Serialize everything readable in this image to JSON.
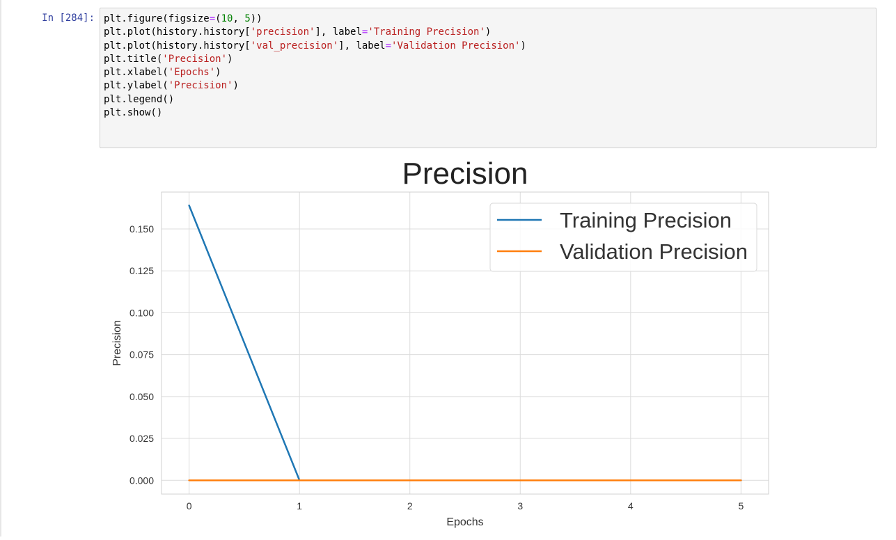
{
  "cell": {
    "prompt": "In [284]:",
    "code_lines": [
      [
        {
          "t": "plt.figure(figsize"
        },
        {
          "t": "=",
          "c": "op"
        },
        {
          "t": "("
        },
        {
          "t": "10",
          "c": "num"
        },
        {
          "t": ", "
        },
        {
          "t": "5",
          "c": "num"
        },
        {
          "t": "))"
        }
      ],
      [
        {
          "t": "plt.plot(history.history["
        },
        {
          "t": "'precision'",
          "c": "str"
        },
        {
          "t": "], label"
        },
        {
          "t": "=",
          "c": "op"
        },
        {
          "t": "'Training Precision'",
          "c": "str"
        },
        {
          "t": ")"
        }
      ],
      [
        {
          "t": "plt.plot(history.history["
        },
        {
          "t": "'val_precision'",
          "c": "str"
        },
        {
          "t": "], label"
        },
        {
          "t": "=",
          "c": "op"
        },
        {
          "t": "'Validation Precision'",
          "c": "str"
        },
        {
          "t": ")"
        }
      ],
      [
        {
          "t": "plt.title("
        },
        {
          "t": "'Precision'",
          "c": "str"
        },
        {
          "t": ")"
        }
      ],
      [
        {
          "t": "plt.xlabel("
        },
        {
          "t": "'Epochs'",
          "c": "str"
        },
        {
          "t": ")"
        }
      ],
      [
        {
          "t": "plt.ylabel("
        },
        {
          "t": "'Precision'",
          "c": "str"
        },
        {
          "t": ")"
        }
      ],
      [
        {
          "t": "plt.legend()"
        }
      ],
      [
        {
          "t": "plt.show()"
        }
      ]
    ]
  },
  "chart_data": {
    "type": "line",
    "title": "Precision",
    "xlabel": "Epochs",
    "ylabel": "Precision",
    "x": [
      0,
      1,
      2,
      3,
      4,
      5
    ],
    "xticks": [
      0,
      1,
      2,
      3,
      4,
      5
    ],
    "xtick_labels": [
      "0",
      "1",
      "2",
      "3",
      "4",
      "5"
    ],
    "yticks": [
      0.0,
      0.025,
      0.05,
      0.075,
      0.1,
      0.125,
      0.15
    ],
    "ytick_labels": [
      "0.000",
      "0.025",
      "0.050",
      "0.075",
      "0.100",
      "0.125",
      "0.150"
    ],
    "xlim": [
      -0.25,
      5.25
    ],
    "ylim": [
      -0.0082,
      0.172
    ],
    "grid": true,
    "legend_position": "upper right",
    "series": [
      {
        "name": "Training Precision",
        "color": "#1f77b4",
        "values": [
          0.164,
          0.0,
          0.0,
          0.0,
          0.0,
          0.0
        ]
      },
      {
        "name": "Validation Precision",
        "color": "#ff7f0e",
        "values": [
          0.0,
          0.0,
          0.0,
          0.0,
          0.0,
          0.0
        ]
      }
    ]
  }
}
